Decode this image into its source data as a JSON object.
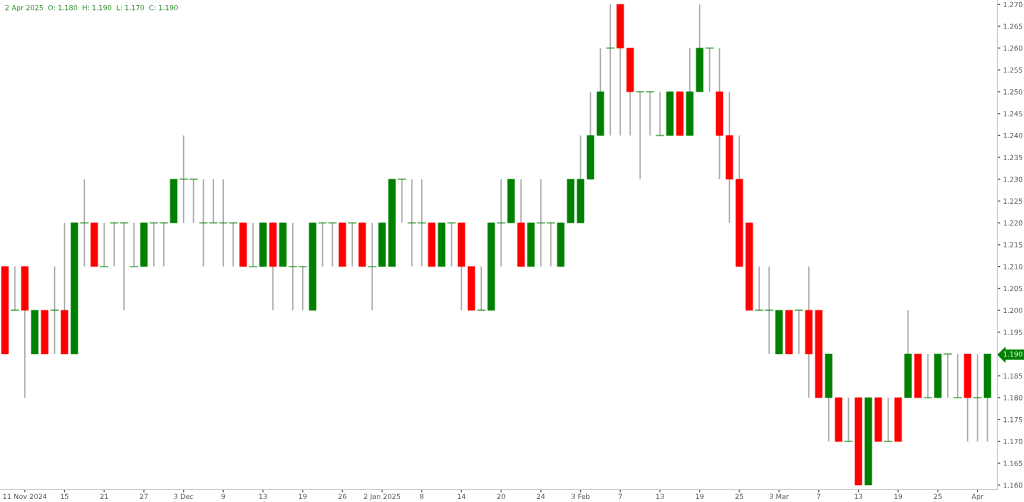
{
  "chart_data": {
    "type": "candlestick",
    "categories": [
      null,
      null,
      "11 Nov 2024",
      null,
      null,
      null,
      "15",
      null,
      null,
      null,
      "21",
      null,
      null,
      null,
      "27",
      null,
      null,
      null,
      "3 Dec",
      null,
      null,
      null,
      "9",
      null,
      null,
      null,
      "13",
      null,
      null,
      null,
      "19",
      null,
      null,
      null,
      "26",
      null,
      null,
      null,
      "2 Jan 2025",
      null,
      null,
      null,
      "8",
      null,
      null,
      null,
      "14",
      null,
      null,
      null,
      "20",
      null,
      null,
      null,
      "24",
      null,
      null,
      null,
      "3 Feb",
      null,
      null,
      null,
      "7",
      null,
      null,
      null,
      "13",
      null,
      null,
      null,
      "19",
      null,
      null,
      null,
      "25",
      null,
      null,
      null,
      "3 Mar",
      null,
      null,
      null,
      "7",
      null,
      null,
      null,
      "13",
      null,
      null,
      null,
      "19",
      null,
      null,
      null,
      "25",
      null,
      null,
      null,
      "Apr",
      null
    ],
    "ohlc": [
      [
        1.21,
        1.21,
        1.19,
        1.19
      ],
      [
        1.2,
        1.21,
        1.2,
        1.2
      ],
      [
        1.21,
        1.21,
        1.18,
        1.2
      ],
      [
        1.19,
        1.2,
        1.19,
        1.2
      ],
      [
        1.2,
        1.2,
        1.19,
        1.19
      ],
      [
        1.2,
        1.21,
        1.19,
        1.2
      ],
      [
        1.2,
        1.22,
        1.19,
        1.19
      ],
      [
        1.19,
        1.22,
        1.19,
        1.22
      ],
      [
        1.22,
        1.23,
        1.21,
        1.22
      ],
      [
        1.22,
        1.22,
        1.21,
        1.21
      ],
      [
        1.21,
        1.22,
        1.21,
        1.21
      ],
      [
        1.22,
        1.22,
        1.21,
        1.22
      ],
      [
        1.22,
        1.22,
        1.2,
        1.22
      ],
      [
        1.21,
        1.22,
        1.21,
        1.21
      ],
      [
        1.21,
        1.22,
        1.21,
        1.22
      ],
      [
        1.22,
        1.22,
        1.21,
        1.22
      ],
      [
        1.22,
        1.22,
        1.21,
        1.22
      ],
      [
        1.22,
        1.23,
        1.22,
        1.23
      ],
      [
        1.23,
        1.24,
        1.22,
        1.23
      ],
      [
        1.23,
        1.23,
        1.22,
        1.23
      ],
      [
        1.22,
        1.23,
        1.21,
        1.22
      ],
      [
        1.22,
        1.23,
        1.22,
        1.22
      ],
      [
        1.22,
        1.23,
        1.21,
        1.22
      ],
      [
        1.22,
        1.22,
        1.21,
        1.22
      ],
      [
        1.22,
        1.22,
        1.21,
        1.21
      ],
      [
        1.21,
        1.22,
        1.21,
        1.21
      ],
      [
        1.21,
        1.22,
        1.21,
        1.22
      ],
      [
        1.22,
        1.22,
        1.2,
        1.21
      ],
      [
        1.21,
        1.22,
        1.21,
        1.22
      ],
      [
        1.21,
        1.22,
        1.2,
        1.21
      ],
      [
        1.21,
        1.21,
        1.2,
        1.21
      ],
      [
        1.2,
        1.22,
        1.2,
        1.22
      ],
      [
        1.22,
        1.22,
        1.21,
        1.22
      ],
      [
        1.22,
        1.22,
        1.21,
        1.22
      ],
      [
        1.22,
        1.22,
        1.21,
        1.21
      ],
      [
        1.22,
        1.22,
        1.21,
        1.22
      ],
      [
        1.22,
        1.22,
        1.21,
        1.21
      ],
      [
        1.21,
        1.22,
        1.2,
        1.21
      ],
      [
        1.21,
        1.22,
        1.21,
        1.22
      ],
      [
        1.21,
        1.23,
        1.21,
        1.23
      ],
      [
        1.23,
        1.23,
        1.22,
        1.23
      ],
      [
        1.22,
        1.23,
        1.21,
        1.22
      ],
      [
        1.22,
        1.23,
        1.21,
        1.22
      ],
      [
        1.22,
        1.22,
        1.21,
        1.21
      ],
      [
        1.21,
        1.22,
        1.21,
        1.22
      ],
      [
        1.22,
        1.22,
        1.21,
        1.22
      ],
      [
        1.22,
        1.22,
        1.2,
        1.21
      ],
      [
        1.21,
        1.21,
        1.2,
        1.2
      ],
      [
        1.2,
        1.21,
        1.2,
        1.2
      ],
      [
        1.2,
        1.22,
        1.2,
        1.22
      ],
      [
        1.22,
        1.23,
        1.21,
        1.22
      ],
      [
        1.22,
        1.23,
        1.22,
        1.23
      ],
      [
        1.22,
        1.23,
        1.21,
        1.21
      ],
      [
        1.21,
        1.22,
        1.21,
        1.22
      ],
      [
        1.22,
        1.23,
        1.21,
        1.22
      ],
      [
        1.22,
        1.22,
        1.21,
        1.22
      ],
      [
        1.21,
        1.22,
        1.21,
        1.22
      ],
      [
        1.22,
        1.23,
        1.22,
        1.23
      ],
      [
        1.22,
        1.24,
        1.22,
        1.23
      ],
      [
        1.23,
        1.25,
        1.23,
        1.24
      ],
      [
        1.24,
        1.26,
        1.24,
        1.25
      ],
      [
        1.26,
        1.27,
        1.24,
        1.26
      ],
      [
        1.27,
        1.27,
        1.24,
        1.26
      ],
      [
        1.26,
        1.26,
        1.24,
        1.25
      ],
      [
        1.25,
        1.25,
        1.23,
        1.25
      ],
      [
        1.25,
        1.25,
        1.24,
        1.25
      ],
      [
        1.24,
        1.25,
        1.24,
        1.24
      ],
      [
        1.24,
        1.25,
        1.24,
        1.25
      ],
      [
        1.25,
        1.25,
        1.24,
        1.24
      ],
      [
        1.24,
        1.26,
        1.24,
        1.25
      ],
      [
        1.25,
        1.27,
        1.25,
        1.26
      ],
      [
        1.26,
        1.26,
        1.25,
        1.26
      ],
      [
        1.25,
        1.26,
        1.23,
        1.24
      ],
      [
        1.24,
        1.25,
        1.22,
        1.23
      ],
      [
        1.23,
        1.24,
        1.21,
        1.21
      ],
      [
        1.22,
        1.22,
        1.2,
        1.2
      ],
      [
        1.2,
        1.21,
        1.2,
        1.2
      ],
      [
        1.2,
        1.21,
        1.19,
        1.2
      ],
      [
        1.19,
        1.2,
        1.19,
        1.2
      ],
      [
        1.2,
        1.2,
        1.19,
        1.19
      ],
      [
        1.2,
        1.2,
        1.19,
        1.2
      ],
      [
        1.2,
        1.21,
        1.18,
        1.19
      ],
      [
        1.2,
        1.2,
        1.18,
        1.18
      ],
      [
        1.18,
        1.19,
        1.17,
        1.19
      ],
      [
        1.18,
        1.18,
        1.17,
        1.17
      ],
      [
        1.17,
        1.18,
        1.17,
        1.17
      ],
      [
        1.18,
        1.18,
        1.16,
        1.16
      ],
      [
        1.16,
        1.18,
        1.16,
        1.18
      ],
      [
        1.18,
        1.18,
        1.17,
        1.17
      ],
      [
        1.17,
        1.18,
        1.17,
        1.17
      ],
      [
        1.18,
        1.18,
        1.17,
        1.17
      ],
      [
        1.18,
        1.2,
        1.18,
        1.19
      ],
      [
        1.19,
        1.19,
        1.18,
        1.18
      ],
      [
        1.18,
        1.19,
        1.18,
        1.18
      ],
      [
        1.18,
        1.19,
        1.18,
        1.19
      ],
      [
        1.19,
        1.19,
        1.18,
        1.19
      ],
      [
        1.18,
        1.19,
        1.18,
        1.18
      ],
      [
        1.19,
        1.19,
        1.17,
        1.18
      ],
      [
        1.18,
        1.19,
        1.17,
        1.18
      ],
      [
        1.18,
        1.19,
        1.17,
        1.19
      ]
    ],
    "colors": [
      "#ff0000",
      "#008000",
      "#ff0000",
      "#008000",
      "#ff0000",
      "#008000",
      "#ff0000",
      "#008000",
      "#008000",
      "#ff0000",
      "#008000",
      "#008000",
      "#008000",
      "#008000",
      "#008000",
      "#008000",
      "#008000",
      "#008000",
      "#008000",
      "#008000",
      "#008000",
      "#008000",
      "#008000",
      "#008000",
      "#ff0000",
      "#008000",
      "#008000",
      "#ff0000",
      "#008000",
      "#008000",
      "#008000",
      "#008000",
      "#008000",
      "#008000",
      "#ff0000",
      "#008000",
      "#ff0000",
      "#008000",
      "#008000",
      "#008000",
      "#008000",
      "#008000",
      "#008000",
      "#ff0000",
      "#008000",
      "#008000",
      "#ff0000",
      "#ff0000",
      "#008000",
      "#008000",
      "#008000",
      "#008000",
      "#ff0000",
      "#008000",
      "#008000",
      "#008000",
      "#008000",
      "#008000",
      "#008000",
      "#008000",
      "#008000",
      "#008000",
      "#ff0000",
      "#ff0000",
      "#008000",
      "#008000",
      "#008000",
      "#008000",
      "#ff0000",
      "#008000",
      "#008000",
      "#008000",
      "#ff0000",
      "#ff0000",
      "#ff0000",
      "#ff0000",
      "#008000",
      "#008000",
      "#008000",
      "#ff0000",
      "#008000",
      "#ff0000",
      "#ff0000",
      "#008000",
      "#ff0000",
      "#008000",
      "#ff0000",
      "#008000",
      "#ff0000",
      "#008000",
      "#ff0000",
      "#008000",
      "#ff0000",
      "#008000",
      "#008000",
      "#008000",
      "#008000",
      "#ff0000",
      "#008000",
      "#008000"
    ],
    "ylim": [
      1.159,
      1.271
    ],
    "yticks": [
      {
        "value": 1.16,
        "label": "1.160"
      },
      {
        "value": 1.165,
        "label": "1.165"
      },
      {
        "value": 1.17,
        "label": "1.170"
      },
      {
        "value": 1.175,
        "label": "1.175"
      },
      {
        "value": 1.18,
        "label": "1.180"
      },
      {
        "value": 1.185,
        "label": "1.185"
      },
      {
        "value": 1.19,
        "label": "1.190"
      },
      {
        "value": 1.195,
        "label": "1.195"
      },
      {
        "value": 1.2,
        "label": "1.200"
      },
      {
        "value": 1.205,
        "label": "1.205"
      },
      {
        "value": 1.21,
        "label": "1.210"
      },
      {
        "value": 1.215,
        "label": "1.215"
      },
      {
        "value": 1.22,
        "label": "1.220"
      },
      {
        "value": 1.225,
        "label": "1.225"
      },
      {
        "value": 1.23,
        "label": "1.230"
      },
      {
        "value": 1.235,
        "label": "1.235"
      },
      {
        "value": 1.24,
        "label": "1.240"
      },
      {
        "value": 1.245,
        "label": "1.245"
      },
      {
        "value": 1.25,
        "label": "1.250"
      },
      {
        "value": 1.255,
        "label": "1.255"
      },
      {
        "value": 1.26,
        "label": "1.260"
      },
      {
        "value": 1.265,
        "label": "1.265"
      },
      {
        "value": 1.27,
        "label": "1.270"
      }
    ],
    "annotations": [
      "2 Apr 2025  O: 1.180  H: 1.190  L: 1.170  C: 1.190"
    ],
    "grid": false,
    "legend": false
  }
}
